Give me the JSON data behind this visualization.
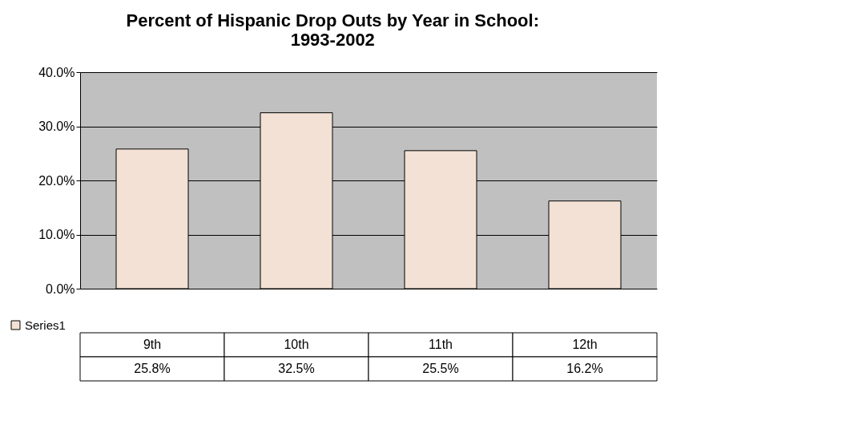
{
  "chart_data": {
    "type": "bar",
    "title": "Percent of Hispanic Drop Outs by Year in School: 1993-2002",
    "categories": [
      "9th",
      "10th",
      "11th",
      "12th"
    ],
    "series": [
      {
        "name": "Series1",
        "color": "#f2e1d4",
        "values": [
          25.8,
          32.5,
          25.5,
          16.2
        ],
        "value_labels": [
          "25.8%",
          "32.5%",
          "25.5%",
          "16.2%"
        ]
      }
    ],
    "ylim": [
      0,
      40
    ],
    "yticks": [
      {
        "value": 0,
        "label": "0.0%"
      },
      {
        "value": 10,
        "label": "10.0%"
      },
      {
        "value": 20,
        "label": "20.0%"
      },
      {
        "value": 30,
        "label": "30.0%"
      },
      {
        "value": 40,
        "label": "40.0%"
      }
    ],
    "grid": "y",
    "legend": "bottom left"
  }
}
